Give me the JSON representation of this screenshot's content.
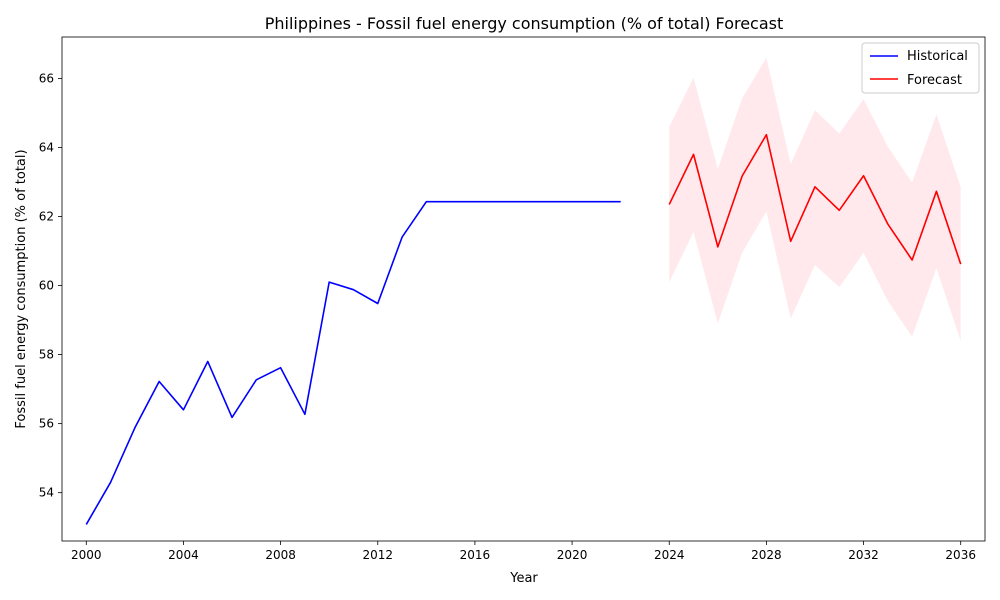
{
  "chart_data": {
    "type": "line",
    "title": "Philippines - Fossil fuel energy consumption (% of total) Forecast",
    "xlabel": "Year",
    "ylabel": "Fossil fuel energy consumption (% of total)",
    "xlim": [
      1999.0,
      2037.0
    ],
    "ylim": [
      52.6,
      67.2
    ],
    "xticks": [
      2000,
      2004,
      2008,
      2012,
      2016,
      2020,
      2024,
      2028,
      2032,
      2036
    ],
    "yticks": [
      54,
      56,
      58,
      60,
      62,
      64,
      66
    ],
    "grid": false,
    "legend_position": "top-right",
    "series": [
      {
        "name": "Historical",
        "color": "#0000ff",
        "x": [
          2000,
          2001,
          2002,
          2003,
          2004,
          2005,
          2006,
          2007,
          2008,
          2009,
          2010,
          2011,
          2012,
          2013,
          2014,
          2015,
          2016,
          2017,
          2018,
          2019,
          2020,
          2021,
          2022
        ],
        "y": [
          53.08,
          54.3,
          55.88,
          57.22,
          56.4,
          57.8,
          56.18,
          57.27,
          57.62,
          56.27,
          60.1,
          59.88,
          59.48,
          61.4,
          62.43,
          62.43,
          62.43,
          62.43,
          62.43,
          62.43,
          62.43,
          62.43,
          62.43
        ]
      },
      {
        "name": "Forecast",
        "color": "#ff0000",
        "x": [
          2024,
          2025,
          2026,
          2027,
          2028,
          2029,
          2030,
          2031,
          2032,
          2033,
          2034,
          2035,
          2036
        ],
        "y": [
          62.35,
          63.8,
          61.12,
          63.17,
          64.37,
          61.28,
          62.86,
          62.18,
          63.18,
          61.78,
          60.74,
          62.73,
          60.62
        ]
      }
    ],
    "confidence_band": {
      "color": "#ffc0cb",
      "x": [
        2024,
        2025,
        2026,
        2027,
        2028,
        2029,
        2030,
        2031,
        2032,
        2033,
        2034,
        2035,
        2036
      ],
      "lower": [
        60.1,
        61.55,
        58.9,
        60.95,
        62.15,
        59.05,
        60.6,
        59.95,
        60.95,
        59.55,
        58.52,
        60.5,
        58.4
      ],
      "upper": [
        64.6,
        66.02,
        63.38,
        65.42,
        66.6,
        63.52,
        65.08,
        64.4,
        65.4,
        64.02,
        62.98,
        64.96,
        62.86
      ]
    }
  }
}
